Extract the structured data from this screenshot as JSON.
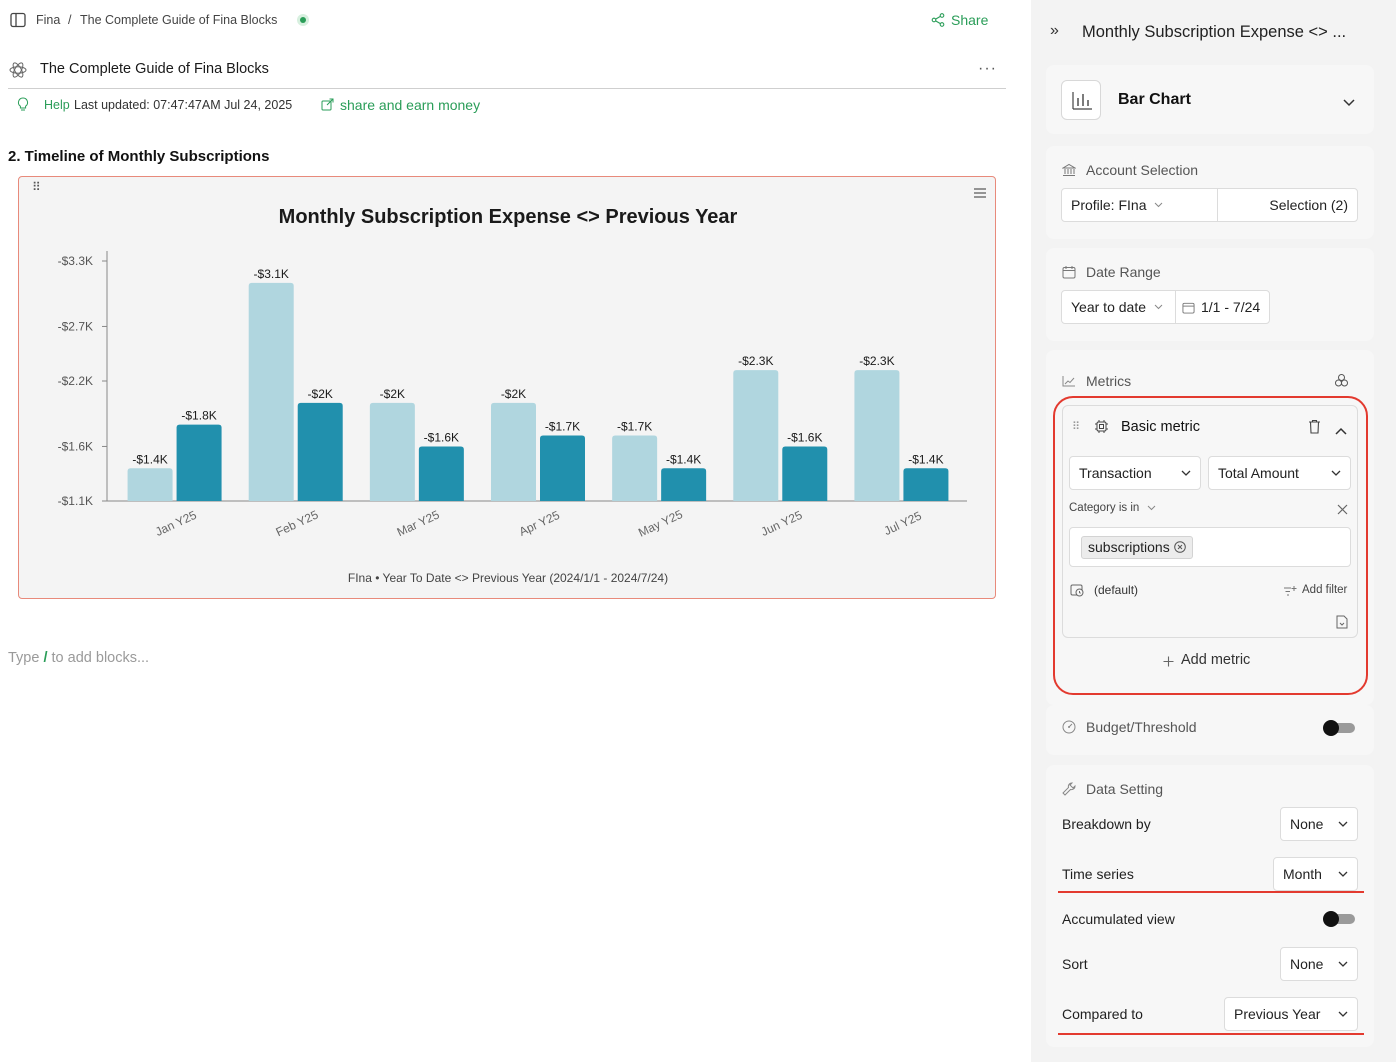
{
  "breadcrumb": {
    "root": "Fina",
    "separator": "/",
    "page": "The Complete Guide of Fina Blocks"
  },
  "share_label": "Share",
  "doc": {
    "title": "The Complete Guide of Fina Blocks",
    "more": "···",
    "help": "Help",
    "updated": "Last updated: 07:47:47AM Jul 24, 2025",
    "share_earn": "share and earn money",
    "section_heading": "2. Timeline of Monthly Subscriptions",
    "placeholder_prefix": "Type",
    "placeholder_slash": "/",
    "placeholder_suffix": "to add blocks..."
  },
  "chart_data": {
    "type": "bar",
    "title": "Monthly Subscription Expense <> Previous Year",
    "subtitle": "FIna • Year To Date  <> Previous Year (2024/1/1 - 2024/7/24)",
    "categories": [
      "Jan Y25",
      "Feb Y25",
      "Mar Y25",
      "Apr Y25",
      "May Y25",
      "Jun Y25",
      "Jul Y25"
    ],
    "series": [
      {
        "values": [
          -1400,
          -3100,
          -2000,
          -2000,
          -1700,
          -2300,
          -2300
        ],
        "labels": [
          "-$1.4K",
          "-$3.1K",
          "-$2K",
          "-$2K",
          "-$1.7K",
          "-$2.3K",
          "-$2.3K"
        ],
        "color": "#b0d6df"
      },
      {
        "values": [
          -1800,
          -2000,
          -1600,
          -1700,
          -1400,
          -1600,
          -1400
        ],
        "labels": [
          "-$1.8K",
          "-$2K",
          "-$1.6K",
          "-$1.7K",
          "-$1.4K",
          "-$1.6K",
          "-$1.4K"
        ],
        "color": "#2190ad"
      }
    ],
    "y_ticks": [
      -1100,
      -1600,
      -2200,
      -2700,
      -3300
    ],
    "y_tick_labels": [
      "-$1.1K",
      "-$1.6K",
      "-$2.2K",
      "-$2.7K",
      "-$3.3K"
    ],
    "ylim": [
      -1100,
      -3300
    ],
    "grid": false
  },
  "panel": {
    "header_title": "Monthly Subscription Expense <> ...",
    "chart_type": "Bar Chart",
    "account_selection": "Account Selection",
    "profile": "Profile: FIna",
    "selection": "Selection (2)",
    "date_range": "Date Range",
    "date_preset": "Year to date",
    "date_value": "1/1 - 7/24",
    "metrics": "Metrics",
    "basic_metric": "Basic metric",
    "source": "Transaction",
    "aggregation": "Total Amount",
    "filter_label": "Category is in",
    "filter_chip": "subscriptions",
    "default_label": "(default)",
    "add_filter": "Add filter",
    "add_metric": "Add metric",
    "budget": "Budget/Threshold",
    "data_setting": "Data Setting",
    "breakdown_label": "Breakdown by",
    "breakdown_value": "None",
    "time_series_label": "Time series",
    "time_series_value": "Month",
    "accumulated_label": "Accumulated view",
    "sort_label": "Sort",
    "sort_value": "None",
    "compared_label": "Compared to",
    "compared_value": "Previous Year"
  },
  "colors": {
    "accent_green": "#2a9d58",
    "highlight_red": "#e33a2f"
  }
}
